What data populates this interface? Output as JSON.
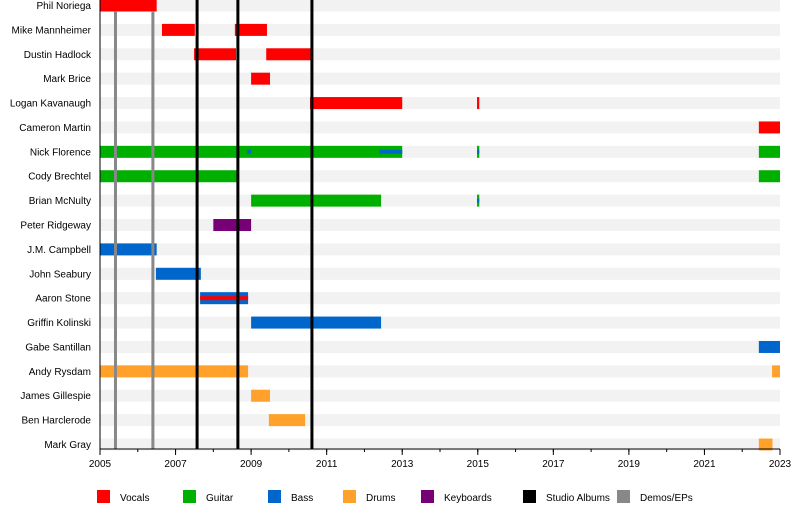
{
  "chart_data": {
    "type": "timeline",
    "title": "",
    "xlabel": "",
    "ylabel": "",
    "xlim": [
      2005,
      2023
    ],
    "x_ticks": [
      2005,
      2007,
      2009,
      2011,
      2013,
      2015,
      2017,
      2019,
      2021,
      2023
    ],
    "grid": false,
    "legend_position": "bottom",
    "role_colors": {
      "Vocals": "#FF0000",
      "Guitar": "#00B000",
      "Bass": "#0066CC",
      "Drums": "#FFA12B",
      "Keyboards": "#770077"
    },
    "legend": [
      {
        "label": "Vocals",
        "color": "#FF0000"
      },
      {
        "label": "Guitar",
        "color": "#00B000"
      },
      {
        "label": "Bass",
        "color": "#0066CC"
      },
      {
        "label": "Drums",
        "color": "#FFA12B"
      },
      {
        "label": "Keyboards",
        "color": "#770077"
      },
      {
        "label": "Studio Albums",
        "color": "#000000"
      },
      {
        "label": "Demos/EPs",
        "color": "#888888"
      }
    ],
    "studio_albums": [
      2007.57,
      2008.65,
      2010.61
    ],
    "demos_eps": [
      2005.41,
      2006.4
    ],
    "members": [
      {
        "name": "Phil Noriega",
        "periods": [
          {
            "start": 2005.0,
            "end": 2006.5,
            "role": "Vocals"
          }
        ]
      },
      {
        "name": "Mike Mannheimer",
        "periods": [
          {
            "start": 2006.64,
            "end": 2007.51,
            "role": "Vocals"
          },
          {
            "start": 2008.57,
            "end": 2009.42,
            "role": "Vocals"
          }
        ]
      },
      {
        "name": "Dustin Hadlock",
        "periods": [
          {
            "start": 2007.49,
            "end": 2008.6,
            "role": "Vocals"
          },
          {
            "start": 2009.4,
            "end": 2010.6,
            "role": "Vocals"
          }
        ]
      },
      {
        "name": "Mark Brice",
        "periods": [
          {
            "start": 2009.0,
            "end": 2009.5,
            "role": "Vocals"
          }
        ]
      },
      {
        "name": "Logan Kavanaugh",
        "periods": [
          {
            "start": 2010.56,
            "end": 2013.0,
            "role": "Vocals"
          },
          {
            "start": 2014.98,
            "end": 2015.04,
            "role": "Vocals"
          }
        ]
      },
      {
        "name": "Cameron Martin",
        "periods": [
          {
            "start": 2022.44,
            "end": 2023.0,
            "role": "Vocals"
          }
        ]
      },
      {
        "name": "Nick Florence",
        "periods": [
          {
            "start": 2005.0,
            "end": 2013.0,
            "role": "Guitar"
          },
          {
            "start": 2008.9,
            "end": 2009.0,
            "role": "Bass",
            "secondary": true
          },
          {
            "start": 2012.4,
            "end": 2013.0,
            "role": "Bass",
            "secondary": true
          },
          {
            "start": 2014.98,
            "end": 2015.04,
            "role": "Guitar"
          },
          {
            "start": 2014.98,
            "end": 2015.04,
            "role": "Bass",
            "secondary": true
          },
          {
            "start": 2022.44,
            "end": 2023.0,
            "role": "Guitar"
          }
        ]
      },
      {
        "name": "Cody Brechtel",
        "periods": [
          {
            "start": 2005.0,
            "end": 2008.67,
            "role": "Guitar"
          },
          {
            "start": 2022.44,
            "end": 2023.0,
            "role": "Guitar"
          }
        ]
      },
      {
        "name": "Brian McNulty",
        "periods": [
          {
            "start": 2009.0,
            "end": 2012.44,
            "role": "Guitar"
          },
          {
            "start": 2014.98,
            "end": 2015.04,
            "role": "Guitar"
          },
          {
            "start": 2014.98,
            "end": 2015.04,
            "role": "Bass",
            "secondary": true
          }
        ]
      },
      {
        "name": "Peter Ridgeway",
        "periods": [
          {
            "start": 2008.0,
            "end": 2009.0,
            "role": "Keyboards"
          }
        ]
      },
      {
        "name": "J.M. Campbell",
        "periods": [
          {
            "start": 2005.0,
            "end": 2006.5,
            "role": "Bass"
          }
        ]
      },
      {
        "name": "John Seabury",
        "periods": [
          {
            "start": 2006.48,
            "end": 2007.67,
            "role": "Bass"
          }
        ]
      },
      {
        "name": "Aaron Stone",
        "periods": [
          {
            "start": 2007.65,
            "end": 2008.92,
            "role": "Bass"
          },
          {
            "start": 2007.65,
            "end": 2008.92,
            "role": "Vocals",
            "secondary": true
          }
        ]
      },
      {
        "name": "Griffin Kolinski",
        "periods": [
          {
            "start": 2009.0,
            "end": 2012.44,
            "role": "Bass"
          }
        ]
      },
      {
        "name": "Gabe Santillan",
        "periods": [
          {
            "start": 2022.44,
            "end": 2023.0,
            "role": "Bass"
          }
        ]
      },
      {
        "name": "Andy Rysdam",
        "periods": [
          {
            "start": 2005.0,
            "end": 2008.92,
            "role": "Drums"
          },
          {
            "start": 2022.79,
            "end": 2023.0,
            "role": "Drums"
          }
        ]
      },
      {
        "name": "James Gillespie",
        "periods": [
          {
            "start": 2009.0,
            "end": 2009.5,
            "role": "Drums"
          }
        ]
      },
      {
        "name": "Ben Harclerode",
        "periods": [
          {
            "start": 2009.47,
            "end": 2010.43,
            "role": "Drums"
          }
        ]
      },
      {
        "name": "Mark Gray",
        "periods": [
          {
            "start": 2022.44,
            "end": 2022.8,
            "role": "Drums"
          }
        ]
      }
    ]
  }
}
